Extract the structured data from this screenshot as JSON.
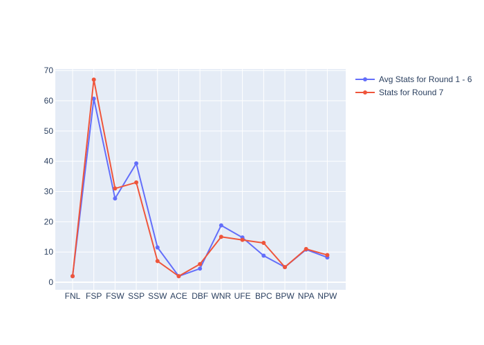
{
  "chart_data": {
    "type": "line",
    "title": "",
    "xlabel": "",
    "ylabel": "",
    "categories": [
      "FNL",
      "FSP",
      "FSW",
      "SSP",
      "SSW",
      "ACE",
      "DBF",
      "WNR",
      "UFE",
      "BPC",
      "BPW",
      "NPA",
      "NPW"
    ],
    "ylim": [
      -2.5,
      70.5
    ],
    "yticks": [
      0,
      10,
      20,
      30,
      40,
      50,
      60,
      70
    ],
    "grid": true,
    "legend_position": "top-right",
    "plot_background": "#e5ecf6",
    "series": [
      {
        "name": "Avg Stats for Round 1 - 6",
        "color": "#636efa",
        "values": [
          2,
          60.7,
          27.7,
          39.3,
          11.5,
          2,
          4.5,
          18.8,
          14.8,
          8.8,
          5,
          10.8,
          8.2
        ]
      },
      {
        "name": "Stats for Round 7",
        "color": "#ef553b",
        "values": [
          2,
          67,
          31,
          33,
          7,
          2,
          6,
          15,
          14,
          13,
          5,
          11,
          9
        ]
      }
    ]
  }
}
